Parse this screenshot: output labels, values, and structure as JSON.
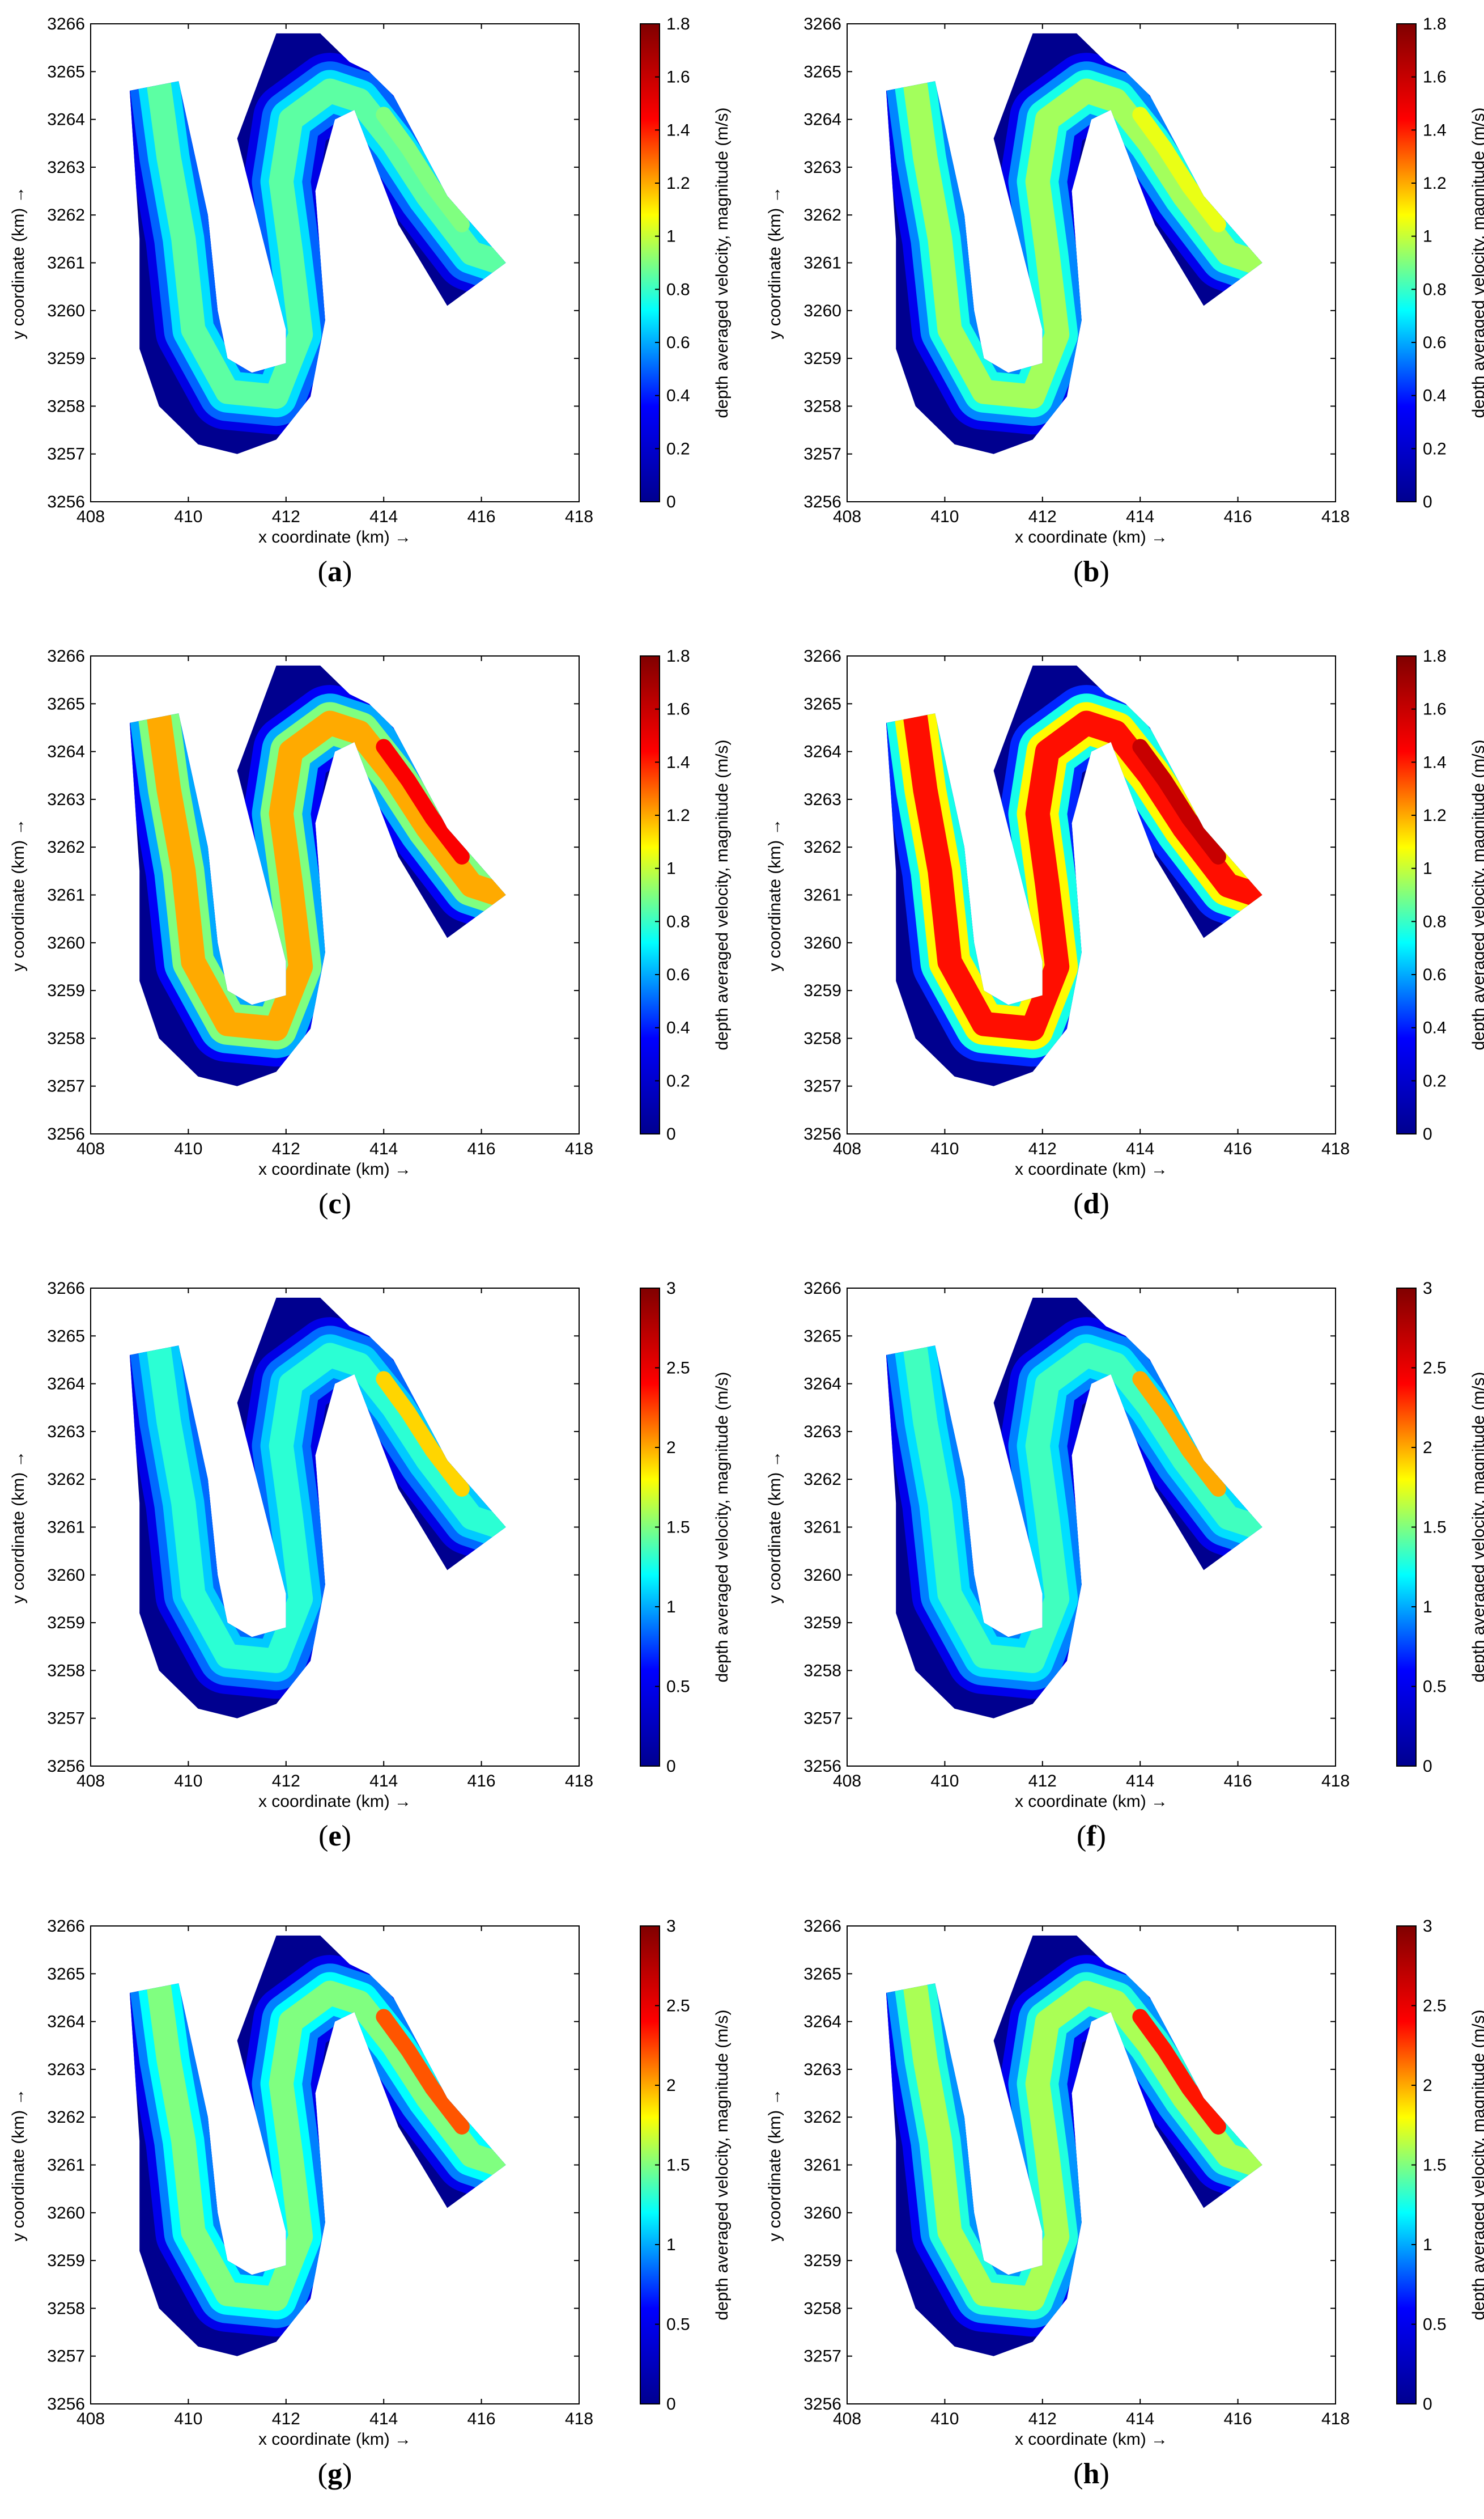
{
  "figure": {
    "panel_label_format": [
      "(",
      ")"
    ]
  },
  "common": {
    "xlabel": "x coordinate (km) →",
    "ylabel": "y coordinate (km) →",
    "colorbar_label": "depth averaged velocity, magnitude (m/s)",
    "xlim": [
      408,
      418
    ],
    "ylim": [
      3256,
      3266
    ],
    "xticks": [
      408,
      410,
      412,
      414,
      416,
      418
    ],
    "yticks": [
      3256,
      3257,
      3258,
      3259,
      3260,
      3261,
      3262,
      3263,
      3264,
      3265,
      3266
    ],
    "colormap": [
      "#00008f",
      "#0000ff",
      "#00ffff",
      "#ffff00",
      "#ff0000",
      "#800000"
    ],
    "dry_color": "#00008f"
  },
  "chart_data": [
    {
      "type": "heatmap",
      "panel": "a",
      "xlabel": "x coordinate (km) →",
      "ylabel": "y coordinate (km) →",
      "colorbar_label": "depth averaged velocity, magnitude (m/s)",
      "xlim": [
        408,
        418
      ],
      "ylim": [
        3256,
        3266
      ],
      "clim": [
        0,
        1.8
      ],
      "colorbar_ticks": [
        "0",
        "0.2",
        "0.4",
        "0.6",
        "0.8",
        "1",
        "1.2",
        "1.4",
        "1.6",
        "1.8"
      ],
      "channel_velocity_core": 0.85,
      "channel_velocity_edge": 0.5,
      "hotspot_velocity": 0.9
    },
    {
      "type": "heatmap",
      "panel": "b",
      "xlabel": "x coordinate (km) →",
      "ylabel": "y coordinate (km) →",
      "colorbar_label": "depth averaged velocity, magnitude (m/s)",
      "xlim": [
        408,
        418
      ],
      "ylim": [
        3256,
        3266
      ],
      "clim": [
        0,
        1.8
      ],
      "colorbar_ticks": [
        "0",
        "0.2",
        "0.4",
        "0.6",
        "0.8",
        "1",
        "1.2",
        "1.4",
        "1.6",
        "1.8"
      ],
      "channel_velocity_core": 0.95,
      "channel_velocity_edge": 0.55,
      "hotspot_velocity": 1.05
    },
    {
      "type": "heatmap",
      "panel": "c",
      "xlabel": "x coordinate (km) →",
      "ylabel": "y coordinate (km) →",
      "colorbar_label": "depth averaged velocity, magnitude (m/s)",
      "xlim": [
        408,
        418
      ],
      "ylim": [
        3256,
        3266
      ],
      "clim": [
        0,
        1.8
      ],
      "colorbar_ticks": [
        "0",
        "0.2",
        "0.4",
        "0.6",
        "0.8",
        "1",
        "1.2",
        "1.4",
        "1.6",
        "1.8"
      ],
      "channel_velocity_core": 1.2,
      "channel_velocity_edge": 0.6,
      "hotspot_velocity": 1.45
    },
    {
      "type": "heatmap",
      "panel": "d",
      "xlabel": "x coordinate (km) →",
      "ylabel": "y coordinate (km) →",
      "colorbar_label": "depth averaged velocity, magnitude (m/s)",
      "xlim": [
        408,
        418
      ],
      "ylim": [
        3256,
        3266
      ],
      "clim": [
        0,
        1.8
      ],
      "colorbar_ticks": [
        "0",
        "0.2",
        "0.4",
        "0.6",
        "0.8",
        "1",
        "1.2",
        "1.4",
        "1.6",
        "1.8"
      ],
      "channel_velocity_core": 1.42,
      "channel_velocity_edge": 0.75,
      "hotspot_velocity": 1.6
    },
    {
      "type": "heatmap",
      "panel": "e",
      "xlabel": "x coordinate (km) →",
      "ylabel": "y coordinate (km) →",
      "colorbar_label": "depth averaged velocity, magnitude (m/s)",
      "xlim": [
        408,
        418
      ],
      "ylim": [
        3256,
        3266
      ],
      "clim": [
        0,
        3
      ],
      "colorbar_ticks": [
        "0",
        "0.5",
        "1",
        "1.5",
        "2",
        "2.5",
        "3"
      ],
      "channel_velocity_core": 1.3,
      "channel_velocity_edge": 0.85,
      "hotspot_velocity": 1.9
    },
    {
      "type": "heatmap",
      "panel": "f",
      "xlabel": "x coordinate (km) →",
      "ylabel": "y coordinate (km) →",
      "colorbar_label": "depth averaged velocity, magnitude (m/s)",
      "xlim": [
        408,
        418
      ],
      "ylim": [
        3256,
        3266
      ],
      "clim": [
        0,
        3
      ],
      "colorbar_ticks": [
        "0",
        "0.5",
        "1",
        "1.5",
        "2",
        "2.5",
        "3"
      ],
      "channel_velocity_core": 1.35,
      "channel_velocity_edge": 0.9,
      "hotspot_velocity": 2.0
    },
    {
      "type": "heatmap",
      "panel": "g",
      "xlabel": "x coordinate (km) →",
      "ylabel": "y coordinate (km) →",
      "colorbar_label": "depth averaged velocity, magnitude (m/s)",
      "xlim": [
        408,
        418
      ],
      "ylim": [
        3256,
        3266
      ],
      "clim": [
        0,
        3
      ],
      "colorbar_ticks": [
        "0",
        "0.5",
        "1",
        "1.5",
        "2",
        "2.5",
        "3"
      ],
      "channel_velocity_core": 1.5,
      "channel_velocity_edge": 0.9,
      "hotspot_velocity": 2.2
    },
    {
      "type": "heatmap",
      "panel": "h",
      "xlabel": "x coordinate (km) →",
      "ylabel": "y coordinate (km) →",
      "colorbar_label": "depth averaged velocity, magnitude (m/s)",
      "xlim": [
        408,
        418
      ],
      "ylim": [
        3256,
        3266
      ],
      "clim": [
        0,
        3
      ],
      "colorbar_ticks": [
        "0",
        "0.5",
        "1",
        "1.5",
        "2",
        "2.5",
        "3"
      ],
      "channel_velocity_core": 1.6,
      "channel_velocity_edge": 0.95,
      "hotspot_velocity": 2.35
    }
  ]
}
